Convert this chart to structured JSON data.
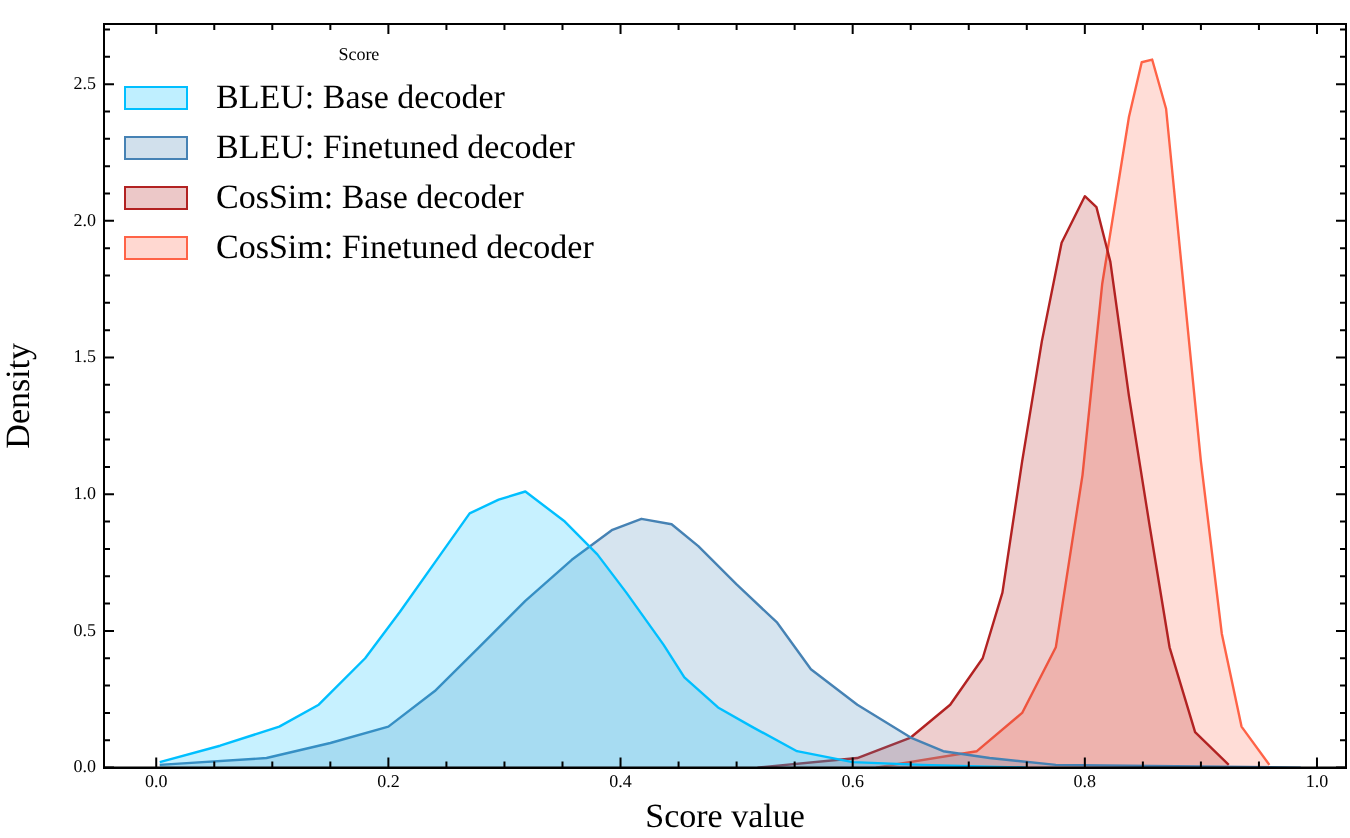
{
  "chart_data": {
    "type": "area",
    "xlabel": "Score value",
    "ylabel": "Density",
    "legend_title": "Score",
    "legend": "top left",
    "grid": false,
    "xlim": [
      -0.045,
      1.025
    ],
    "ylim": [
      0,
      2.72
    ],
    "xticks": [
      {
        "value": 0,
        "label": "0.0"
      },
      {
        "value": 0.05,
        "label": null
      },
      {
        "value": 0.1,
        "label": null
      },
      {
        "value": 0.15,
        "label": null
      },
      {
        "value": 0.2,
        "label": "0.2"
      },
      {
        "value": 0.25,
        "label": null
      },
      {
        "value": 0.3,
        "label": null
      },
      {
        "value": 0.35,
        "label": null
      },
      {
        "value": 0.4,
        "label": "0.4"
      },
      {
        "value": 0.45,
        "label": null
      },
      {
        "value": 0.5,
        "label": null
      },
      {
        "value": 0.55,
        "label": null
      },
      {
        "value": 0.6,
        "label": "0.6"
      },
      {
        "value": 0.65,
        "label": null
      },
      {
        "value": 0.7,
        "label": null
      },
      {
        "value": 0.75,
        "label": null
      },
      {
        "value": 0.8,
        "label": "0.8"
      },
      {
        "value": 0.85,
        "label": null
      },
      {
        "value": 0.9,
        "label": null
      },
      {
        "value": 0.95,
        "label": null
      },
      {
        "value": 1,
        "label": "1.0"
      }
    ],
    "yticks": [
      {
        "value": 0,
        "label": "0.0"
      },
      {
        "value": 0.1,
        "label": null
      },
      {
        "value": 0.2,
        "label": null
      },
      {
        "value": 0.3,
        "label": null
      },
      {
        "value": 0.4,
        "label": null
      },
      {
        "value": 0.5,
        "label": "0.5"
      },
      {
        "value": 0.6,
        "label": null
      },
      {
        "value": 0.7,
        "label": null
      },
      {
        "value": 0.8,
        "label": null
      },
      {
        "value": 0.9,
        "label": null
      },
      {
        "value": 1,
        "label": "1.0"
      },
      {
        "value": 1.1,
        "label": null
      },
      {
        "value": 1.2,
        "label": null
      },
      {
        "value": 1.3,
        "label": null
      },
      {
        "value": 1.4,
        "label": null
      },
      {
        "value": 1.5,
        "label": "1.5"
      },
      {
        "value": 1.6,
        "label": null
      },
      {
        "value": 1.7,
        "label": null
      },
      {
        "value": 1.8,
        "label": null
      },
      {
        "value": 1.9,
        "label": null
      },
      {
        "value": 2,
        "label": "2.0"
      },
      {
        "value": 2.1,
        "label": null
      },
      {
        "value": 2.2,
        "label": null
      },
      {
        "value": 2.3,
        "label": null
      },
      {
        "value": 2.4,
        "label": null
      },
      {
        "value": 2.5,
        "label": "2.5"
      },
      {
        "value": 2.6,
        "label": null
      },
      {
        "value": 2.7,
        "label": null
      }
    ],
    "series": [
      {
        "name": "BLEU: Base decoder",
        "color": "#00bfff",
        "x": [
          0.003,
          0.055,
          0.106,
          0.14,
          0.18,
          0.21,
          0.245,
          0.27,
          0.295,
          0.318,
          0.352,
          0.38,
          0.405,
          0.437,
          0.455,
          0.484,
          0.513,
          0.552,
          0.6,
          0.66,
          0.75
        ],
        "values": [
          0.02,
          0.08,
          0.15,
          0.23,
          0.4,
          0.57,
          0.78,
          0.93,
          0.98,
          1.01,
          0.9,
          0.78,
          0.64,
          0.45,
          0.33,
          0.22,
          0.15,
          0.06,
          0.02,
          0.01,
          0
        ]
      },
      {
        "name": "BLEU: Finetuned decoder",
        "color": "#4682b4",
        "x": [
          0.003,
          0.095,
          0.15,
          0.2,
          0.24,
          0.278,
          0.318,
          0.358,
          0.393,
          0.418,
          0.444,
          0.467,
          0.5,
          0.535,
          0.564,
          0.604,
          0.65,
          0.678,
          0.718,
          0.775,
          0.986
        ],
        "values": [
          0.01,
          0.035,
          0.09,
          0.15,
          0.28,
          0.44,
          0.61,
          0.76,
          0.87,
          0.91,
          0.89,
          0.81,
          0.67,
          0.53,
          0.36,
          0.23,
          0.11,
          0.06,
          0.035,
          0.01,
          0
        ]
      },
      {
        "name": "CosSim: Base decoder",
        "color": "#b22222",
        "x": [
          0.518,
          0.604,
          0.65,
          0.684,
          0.712,
          0.729,
          0.746,
          0.763,
          0.78,
          0.8,
          0.81,
          0.822,
          0.838,
          0.856,
          0.873,
          0.895,
          0.924
        ],
        "values": [
          0,
          0.035,
          0.11,
          0.23,
          0.4,
          0.64,
          1.12,
          1.56,
          1.92,
          2.09,
          2.05,
          1.85,
          1.36,
          0.88,
          0.44,
          0.13,
          0.01
        ]
      },
      {
        "name": "CosSim: Finetuned decoder",
        "color": "#ff6347",
        "x": [
          0.62,
          0.707,
          0.746,
          0.775,
          0.798,
          0.815,
          0.838,
          0.849,
          0.858,
          0.87,
          0.883,
          0.9,
          0.918,
          0.935,
          0.959
        ],
        "values": [
          0,
          0.06,
          0.2,
          0.44,
          1.07,
          1.77,
          2.38,
          2.58,
          2.59,
          2.41,
          1.85,
          1.12,
          0.49,
          0.15,
          0.01
        ]
      }
    ]
  }
}
